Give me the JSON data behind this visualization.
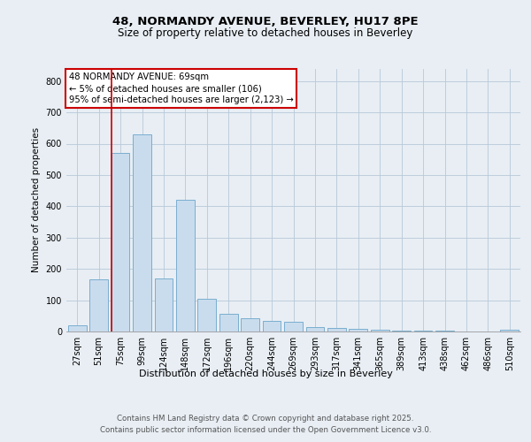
{
  "title1": "48, NORMANDY AVENUE, BEVERLEY, HU17 8PE",
  "title2": "Size of property relative to detached houses in Beverley",
  "xlabel": "Distribution of detached houses by size in Beverley",
  "ylabel": "Number of detached properties",
  "categories": [
    "27sqm",
    "51sqm",
    "75sqm",
    "99sqm",
    "124sqm",
    "148sqm",
    "172sqm",
    "196sqm",
    "220sqm",
    "244sqm",
    "269sqm",
    "293sqm",
    "317sqm",
    "341sqm",
    "365sqm",
    "389sqm",
    "413sqm",
    "438sqm",
    "462sqm",
    "486sqm",
    "510sqm"
  ],
  "values": [
    20,
    167,
    570,
    630,
    170,
    420,
    105,
    57,
    42,
    33,
    30,
    14,
    10,
    8,
    6,
    4,
    3,
    2,
    1,
    1,
    6
  ],
  "bar_color": "#c9dced",
  "bar_edge_color": "#7aaed0",
  "red_line_index": 2,
  "annotation_text": "48 NORMANDY AVENUE: 69sqm\n← 5% of detached houses are smaller (106)\n95% of semi-detached houses are larger (2,123) →",
  "annotation_box_color": "#ffffff",
  "annotation_edge_color": "#cc0000",
  "footer_text": "Contains HM Land Registry data © Crown copyright and database right 2025.\nContains public sector information licensed under the Open Government Licence v3.0.",
  "ylim": [
    0,
    840
  ],
  "yticks": [
    0,
    100,
    200,
    300,
    400,
    500,
    600,
    700,
    800
  ],
  "background_color": "#e8eef4",
  "plot_bg_color": "#e8eef4",
  "grid_color": "#b8c8d8"
}
